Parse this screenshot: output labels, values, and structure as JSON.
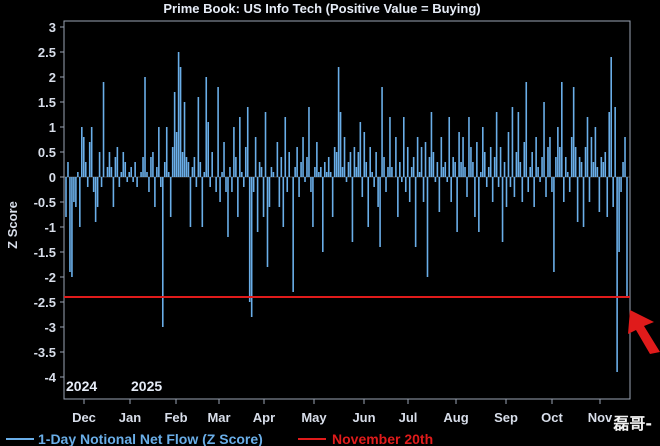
{
  "chart_data": {
    "type": "bar",
    "title": "Prime Book: US Info Tech (Positive Value = Buying)",
    "ylabel": "Z Score",
    "xlabel": "",
    "ylim": [
      -4.3,
      3
    ],
    "yticks": [
      "3",
      "2.5",
      "2",
      "1.5",
      "1",
      "0.5",
      "0",
      "-0.5",
      "-1",
      "-1.5",
      "-2",
      "-2.5",
      "-3",
      "-3.5",
      "-4"
    ],
    "ytick_values": [
      3,
      2.5,
      2,
      1.5,
      1,
      0.5,
      0,
      -0.5,
      -1,
      -1.5,
      -2,
      -2.5,
      -3,
      -3.5,
      -4
    ],
    "month_labels": [
      "Dec",
      "Jan",
      "Feb",
      "Mar",
      "Apr",
      "May",
      "Jun",
      "Jul",
      "Aug",
      "Sep",
      "Oct",
      "Nov"
    ],
    "year_labels": [
      "2024",
      "2025"
    ],
    "series": [
      {
        "name": "1-Day Notional Net Flow (Z Score)",
        "color": "#6aaee8",
        "values": [
          -0.8,
          0.3,
          -1.9,
          -2.0,
          -0.5,
          -0.6,
          0.1,
          -1.0,
          1.0,
          0.8,
          0.3,
          -0.2,
          0.7,
          1.0,
          -0.3,
          -0.9,
          -0.6,
          0.5,
          -0.2,
          1.9,
          0.0,
          0.2,
          0.5,
          0.2,
          -0.6,
          0.4,
          0.6,
          -0.2,
          0.1,
          0.5,
          0.3,
          -0.1,
          0.1,
          0.2,
          -0.1,
          0.3,
          -0.2,
          0.0,
          0.1,
          0.4,
          2.0,
          0.1,
          -0.3,
          0.4,
          0.5,
          -0.6,
          0.2,
          1.0,
          -0.2,
          -3.0,
          0.3,
          1.0,
          0.1,
          -0.8,
          0.6,
          1.7,
          0.9,
          2.5,
          2.2,
          0.5,
          1.5,
          0.4,
          0.3,
          -1.0,
          0.2,
          0.4,
          -0.2,
          1.6,
          0.3,
          -1.0,
          0.1,
          2.0,
          1.1,
          -0.2,
          0.5,
          0.0,
          -0.3,
          1.8,
          -0.5,
          0.1,
          0.7,
          -0.3,
          -1.2,
          0.2,
          -0.3,
          1.0,
          0.4,
          -0.8,
          1.2,
          0.1,
          -0.2,
          0.6,
          1.4,
          -2.5,
          -2.8,
          -0.3,
          0.8,
          -1.1,
          0.3,
          0.2,
          -0.8,
          1.3,
          -1.8,
          -0.6,
          0.2,
          0.1,
          0.0,
          0.7,
          -0.6,
          0.4,
          -1.0,
          1.2,
          -0.3,
          0.5,
          0.0,
          -2.3,
          0.2,
          0.6,
          -0.4,
          0.3,
          0.8,
          -0.1,
          0.4,
          1.4,
          -0.3,
          -1.0,
          0.2,
          0.7,
          0.1,
          0.2,
          -1.5,
          0.3,
          0.1,
          0.4,
          0.1,
          -0.8,
          0.6,
          0.5,
          2.2,
          1.3,
          0.2,
          0.8,
          -0.1,
          0.3,
          0.5,
          -1.3,
          0.6,
          0.2,
          0.5,
          1.1,
          -0.4,
          0.9,
          0.3,
          -1.0,
          0.6,
          0.1,
          -0.2,
          0.5,
          -0.6,
          -1.4,
          1.8,
          0.4,
          -0.3,
          0.2,
          1.2,
          0.2,
          0.0,
          0.8,
          -0.8,
          0.3,
          -0.1,
          1.2,
          -0.3,
          0.6,
          -0.5,
          0.2,
          0.4,
          -1.4,
          0.8,
          0.1,
          0.6,
          -0.5,
          0.7,
          -2.0,
          0.4,
          1.3,
          0.5,
          -0.1,
          0.3,
          -0.7,
          0.8,
          0.2,
          0.3,
          -0.1,
          1.2,
          -0.5,
          0.4,
          0.3,
          -1.1,
          0.9,
          0.3,
          0.8,
          0.2,
          -0.4,
          1.2,
          0.6,
          0.3,
          -0.8,
          0.7,
          -1.1,
          0.1,
          1.0,
          0.5,
          -0.2,
          0.2,
          0.6,
          -0.5,
          0.4,
          1.3,
          -0.2,
          0.6,
          -1.3,
          0.3,
          -0.6,
          0.9,
          -0.2,
          1.4,
          -0.4,
          0.5,
          1.3,
          0.3,
          -0.5,
          0.7,
          1.9,
          -0.3,
          0.2,
          0.5,
          -0.6,
          0.8,
          0.2,
          -0.1,
          0.4,
          1.5,
          -0.4,
          0.6,
          0.8,
          -0.3,
          -1.9,
          0.4,
          1.0,
          0.6,
          1.9,
          -0.5,
          0.4,
          0.1,
          -0.3,
          0.8,
          1.8,
          0.6,
          -0.9,
          0.4,
          0.3,
          -1.0,
          0.6,
          1.2,
          -0.5,
          0.8,
          0.3,
          1.0,
          0.2,
          -0.7,
          0.4,
          0.3,
          0.5,
          -0.8,
          1.3,
          2.4,
          -0.6,
          1.4,
          -3.9,
          -1.5,
          -0.3,
          0.3,
          0.8,
          -2.4
        ]
      },
      {
        "name": "November 20th",
        "color": "#e01b1b",
        "value": -2.4
      }
    ],
    "annotation": {
      "type": "arrow",
      "color": "#e01b1b",
      "target": "last bar"
    }
  },
  "watermark": "磊哥-"
}
